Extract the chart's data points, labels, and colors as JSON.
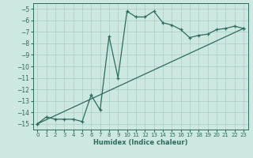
{
  "xlabel": "Humidex (Indice chaleur)",
  "bg_color": "#cce8e0",
  "grid_color": "#aacccc",
  "line_color": "#2e6b60",
  "xlim": [
    -0.5,
    23.5
  ],
  "ylim": [
    -15.5,
    -4.5
  ],
  "yticks": [
    -5,
    -6,
    -7,
    -8,
    -9,
    -10,
    -11,
    -12,
    -13,
    -14,
    -15
  ],
  "xticks": [
    0,
    1,
    2,
    3,
    4,
    5,
    6,
    7,
    8,
    9,
    10,
    11,
    12,
    13,
    14,
    15,
    16,
    17,
    18,
    19,
    20,
    21,
    22,
    23
  ],
  "curve1_x": [
    0,
    1,
    2,
    3,
    4,
    5,
    6,
    7,
    8,
    9,
    10,
    11,
    12,
    13,
    14,
    15,
    16,
    17,
    18,
    19,
    20,
    21,
    22,
    23
  ],
  "curve1_y": [
    -15.0,
    -14.4,
    -14.6,
    -14.6,
    -14.6,
    -14.8,
    -12.5,
    -13.8,
    -7.4,
    -11.0,
    -5.2,
    -5.7,
    -5.7,
    -5.2,
    -6.2,
    -6.4,
    -6.8,
    -7.5,
    -7.3,
    -7.2,
    -6.8,
    -6.7,
    -6.5,
    -6.7
  ],
  "curve2_x": [
    0,
    23
  ],
  "curve2_y": [
    -15.0,
    -6.7
  ]
}
